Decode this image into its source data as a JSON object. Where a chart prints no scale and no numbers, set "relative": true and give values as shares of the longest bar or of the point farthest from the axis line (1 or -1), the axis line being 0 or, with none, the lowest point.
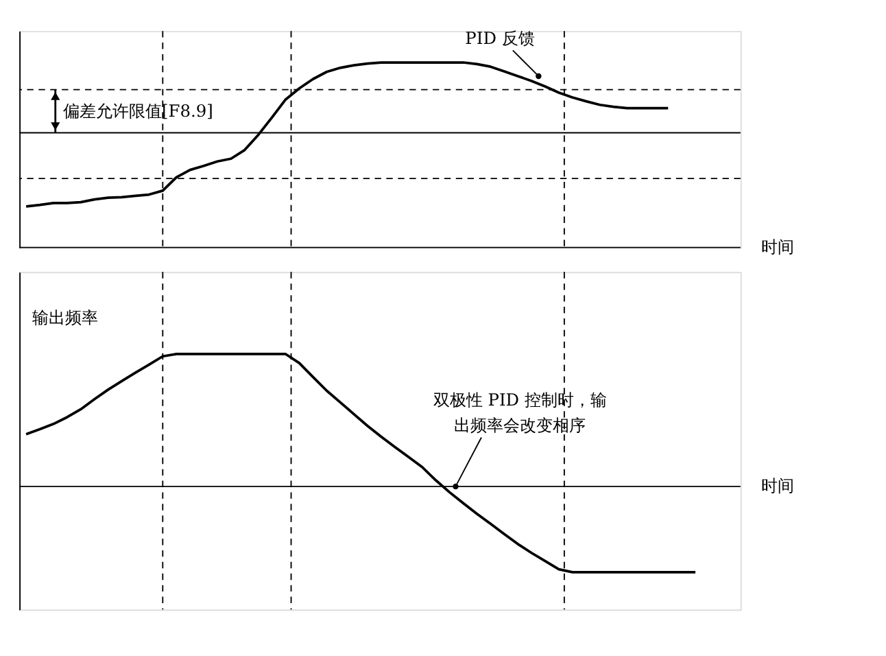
{
  "chart_data": [
    {
      "type": "line",
      "relative": true,
      "xlabel": "时间",
      "categories": [
        null,
        null,
        null,
        null,
        null,
        null,
        null,
        null,
        null,
        null,
        null,
        null,
        null,
        null,
        null,
        null,
        null,
        null,
        null,
        null,
        null,
        null,
        null,
        null,
        null,
        null,
        null,
        null,
        null,
        null,
        null,
        null,
        null,
        null,
        null,
        null,
        null,
        null,
        null,
        null,
        null,
        null,
        null,
        null,
        null,
        null,
        null,
        null,
        null,
        null
      ],
      "ylim": [
        0,
        1.17
      ],
      "grid": false,
      "marker": "none",
      "line_style": "solid",
      "series": [
        {
          "color": "#000000",
          "values": [
            0.222,
            0.23,
            0.24,
            0.24,
            0.245,
            0.26,
            0.269,
            0.272,
            0.279,
            0.286,
            0.307,
            0.379,
            0.419,
            0.441,
            0.465,
            0.48,
            0.527,
            0.609,
            0.703,
            0.8,
            0.86,
            0.91,
            0.949,
            0.971,
            0.985,
            0.994,
            1,
            1,
            1,
            1,
            1,
            1,
            1,
            0.991,
            0.977,
            0.952,
            0.926,
            0.9,
            0.87,
            0.837,
            0.811,
            0.79,
            0.771,
            0.76,
            0.753,
            0.753,
            0.753,
            0.753,
            null,
            null
          ]
        }
      ],
      "ref_lines": [
        {
          "axis": "y",
          "value": 0.853,
          "line_style": "dashed"
        },
        {
          "axis": "y",
          "value": 0.62,
          "line_style": "solid"
        },
        {
          "axis": "y",
          "value": 0.373,
          "line_style": "dashed"
        }
      ],
      "annotations": [
        {
          "text": "PID 反馈",
          "y": 0.926
        },
        "偏差允许限值[F8.9]"
      ]
    },
    {
      "type": "line",
      "relative": true,
      "xlabel": "时间",
      "ylabel": "输出频率",
      "categories": [
        null,
        null,
        null,
        null,
        null,
        null,
        null,
        null,
        null,
        null,
        null,
        null,
        null,
        null,
        null,
        null,
        null,
        null,
        null,
        null,
        null,
        null,
        null,
        null,
        null,
        null,
        null,
        null,
        null,
        null,
        null,
        null,
        null,
        null,
        null,
        null,
        null,
        null,
        null,
        null,
        null,
        null,
        null,
        null,
        null,
        null,
        null,
        null,
        null,
        null
      ],
      "ylim": [
        -0.93,
        1.62
      ],
      "grid": false,
      "marker": "none",
      "line_style": "solid",
      "series": [
        {
          "color": "#000000",
          "values": [
            0.395,
            0.432,
            0.472,
            0.523,
            0.583,
            0.659,
            0.731,
            0.796,
            0.859,
            0.92,
            0.983,
            1,
            1,
            1,
            1,
            1,
            1,
            1,
            1,
            1,
            0.932,
            0.827,
            0.724,
            0.635,
            0.546,
            0.457,
            0.375,
            0.298,
            0.222,
            0.146,
            0.046,
            -0.044,
            -0.126,
            -0.206,
            -0.282,
            -0.359,
            -0.435,
            -0.502,
            -0.564,
            -0.626,
            -0.648,
            -0.648,
            -0.648,
            -0.648,
            -0.648,
            -0.648,
            -0.648,
            -0.648,
            -0.648,
            -0.648
          ]
        }
      ],
      "annotations": [
        "双极性 PID 控制时，输出频率会改变相序"
      ]
    }
  ]
}
